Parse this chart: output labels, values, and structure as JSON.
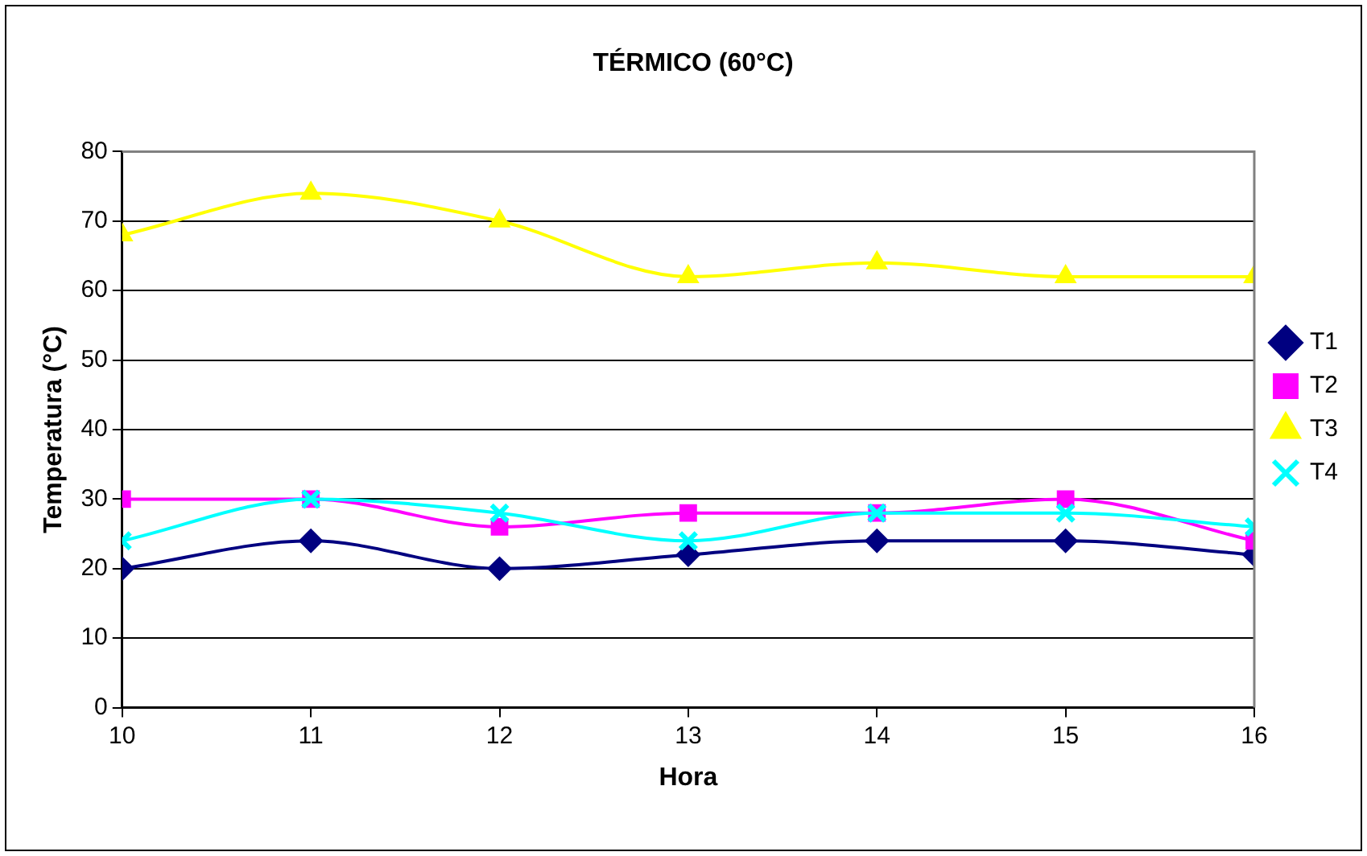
{
  "chart_data": {
    "type": "line",
    "title": "TÉRMICO (60°C)",
    "xlabel": "Hora",
    "ylabel": "Temperatura (°C)",
    "x": [
      10,
      11,
      12,
      13,
      14,
      15,
      16
    ],
    "xlim": [
      10,
      16
    ],
    "xticks": [
      10,
      11,
      12,
      13,
      14,
      15,
      16
    ],
    "ylim": [
      0,
      80
    ],
    "yticks": [
      0,
      10,
      20,
      30,
      40,
      50,
      60,
      70,
      80
    ],
    "series": [
      {
        "name": "T1",
        "color": "#000080",
        "marker": "diamond",
        "values": [
          20,
          24,
          20,
          22,
          24,
          24,
          22
        ]
      },
      {
        "name": "T2",
        "color": "#ff00ff",
        "marker": "square",
        "values": [
          30,
          30,
          26,
          28,
          28,
          30,
          24
        ]
      },
      {
        "name": "T3",
        "color": "#ffff00",
        "marker": "triangle",
        "values": [
          68,
          74,
          70,
          62,
          64,
          62,
          62
        ]
      },
      {
        "name": "T4",
        "color": "#00ffff",
        "marker": "cross",
        "values": [
          24,
          30,
          28,
          24,
          28,
          28,
          26
        ]
      }
    ],
    "grid": "y",
    "legend": "right"
  }
}
